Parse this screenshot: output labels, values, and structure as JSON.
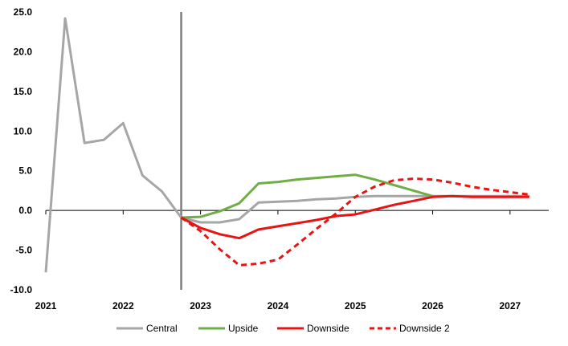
{
  "chart_data": {
    "type": "line",
    "title": "",
    "xlabel": "",
    "ylabel": "",
    "xlim": [
      2021.0,
      2027.5
    ],
    "ylim": [
      -10,
      25
    ],
    "yticks": [
      -10,
      -5,
      0,
      5,
      10,
      15,
      20,
      25
    ],
    "ytick_labels": [
      "-10.0",
      "-5.0",
      "0.0",
      "5.0",
      "10.0",
      "15.0",
      "20.0",
      "25.0"
    ],
    "xticks": [
      2021,
      2022,
      2023,
      2024,
      2025,
      2026,
      2027
    ],
    "xtick_labels": [
      "2021",
      "2022",
      "2023",
      "2024",
      "2025",
      "2026",
      "2027"
    ],
    "grid": false,
    "legend_position": "bottom",
    "vertical_marker_x": 2022.75,
    "series": [
      {
        "name": "Central",
        "color": "#a6a6a6",
        "style": "solid",
        "x": [
          2021.0,
          2021.25,
          2021.5,
          2021.75,
          2022.0,
          2022.25,
          2022.5,
          2022.75,
          2023.0,
          2023.25,
          2023.5,
          2023.75,
          2024.0,
          2024.25,
          2024.5,
          2024.75,
          2025.0,
          2025.25,
          2025.5,
          2025.75,
          2026.0,
          2026.25,
          2026.5,
          2026.75,
          2027.0,
          2027.25
        ],
        "values": [
          -7.8,
          24.2,
          8.5,
          8.9,
          11.0,
          4.4,
          2.4,
          -0.9,
          -1.5,
          -1.5,
          -1.1,
          1.0,
          1.1,
          1.2,
          1.4,
          1.5,
          1.7,
          1.8,
          1.8,
          1.8,
          1.8,
          1.8,
          1.8,
          1.8,
          1.8,
          1.8
        ]
      },
      {
        "name": "Upside",
        "color": "#70ad47",
        "style": "solid",
        "x": [
          2022.75,
          2023.0,
          2023.25,
          2023.5,
          2023.75,
          2024.0,
          2024.25,
          2024.5,
          2024.75,
          2025.0,
          2025.25,
          2025.5,
          2025.75,
          2026.0
        ],
        "values": [
          -0.9,
          -0.8,
          -0.1,
          0.9,
          3.4,
          3.6,
          3.9,
          4.1,
          4.3,
          4.5,
          3.9,
          3.2,
          2.5,
          1.8
        ]
      },
      {
        "name": "Downside",
        "color": "#e81414",
        "style": "solid",
        "x": [
          2022.75,
          2023.0,
          2023.25,
          2023.5,
          2023.75,
          2024.0,
          2024.25,
          2024.5,
          2024.75,
          2025.0,
          2025.25,
          2025.5,
          2025.75,
          2026.0,
          2026.25,
          2026.5,
          2026.75,
          2027.0,
          2027.25
        ],
        "values": [
          -0.9,
          -2.2,
          -3.0,
          -3.5,
          -2.4,
          -2.0,
          -1.6,
          -1.2,
          -0.7,
          -0.5,
          0.1,
          0.7,
          1.2,
          1.7,
          1.8,
          1.7,
          1.7,
          1.7,
          1.7
        ]
      },
      {
        "name": "Downside 2",
        "color": "#e81414",
        "style": "dashed",
        "x": [
          2022.75,
          2023.0,
          2023.25,
          2023.5,
          2023.75,
          2024.0,
          2024.25,
          2024.5,
          2024.75,
          2025.0,
          2025.25,
          2025.5,
          2025.75,
          2026.0,
          2026.25,
          2026.5,
          2026.75,
          2027.0,
          2027.25
        ],
        "values": [
          -0.9,
          -2.6,
          -4.9,
          -6.9,
          -6.7,
          -6.2,
          -4.3,
          -2.3,
          -0.4,
          1.7,
          3.0,
          3.8,
          4.0,
          3.9,
          3.5,
          3.0,
          2.6,
          2.3,
          2.0
        ]
      }
    ]
  }
}
